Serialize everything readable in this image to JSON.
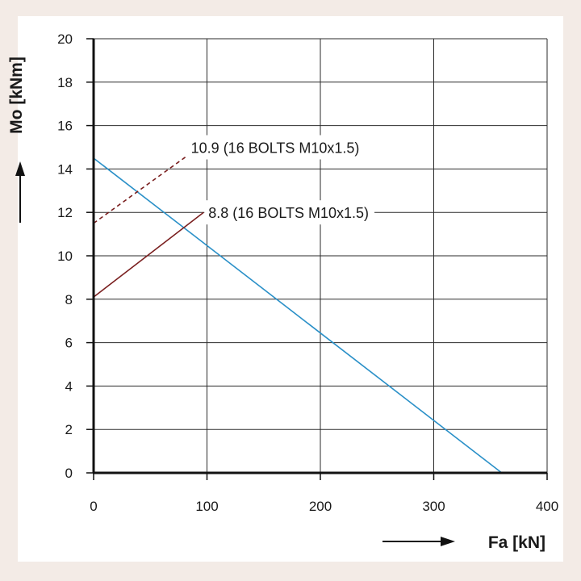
{
  "chart_data": {
    "type": "line",
    "title": "",
    "xlabel": "Fa [kN]",
    "ylabel": "Mo [kNm]",
    "xlim": [
      0,
      400
    ],
    "ylim": [
      0,
      20
    ],
    "xticks": [
      0,
      100,
      200,
      300,
      400
    ],
    "yticks": [
      0,
      2,
      4,
      6,
      8,
      10,
      12,
      14,
      16,
      18,
      20
    ],
    "grid": true,
    "series": [
      {
        "name": "load-curve",
        "label": "",
        "color": "#2a90c8",
        "dash": "solid",
        "x": [
          0,
          360
        ],
        "y": [
          14.5,
          0
        ]
      },
      {
        "name": "grade-10-9",
        "label": "10.9 (16 BOLTS M10x1.5)",
        "color": "#7a1f1f",
        "dash": "dashed",
        "x": [
          0,
          93
        ],
        "y": [
          11.5,
          15.0
        ]
      },
      {
        "name": "grade-8-8",
        "label": "8.8 (16 BOLTS M10x1.5)",
        "color": "#7a1f1f",
        "dash": "solid",
        "x": [
          0,
          97
        ],
        "y": [
          8.1,
          12.0
        ]
      }
    ]
  }
}
